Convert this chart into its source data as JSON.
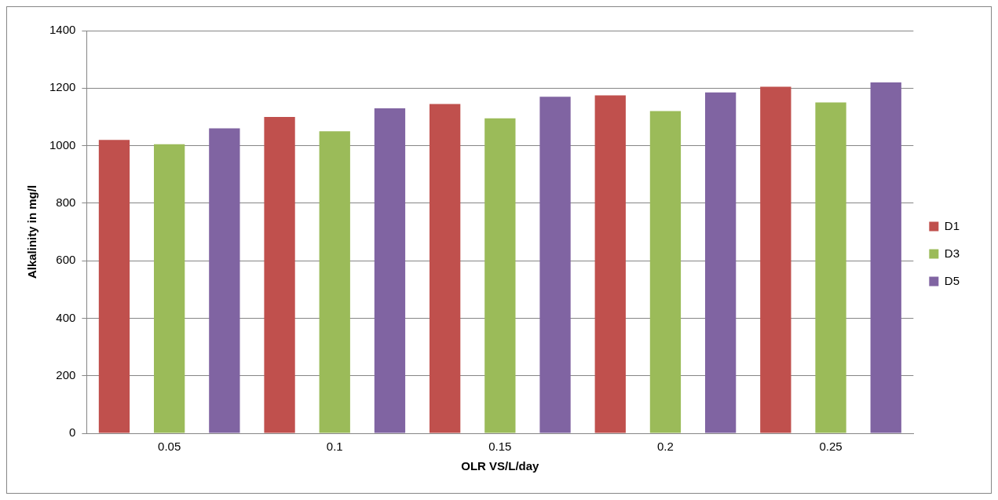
{
  "chart_data": {
    "type": "bar",
    "xlabel": "OLR VS/L/day",
    "ylabel": "Alkalinity in mg/l",
    "categories": [
      "0.05",
      "0.1",
      "0.15",
      "0.2",
      "0.25"
    ],
    "series": [
      {
        "name": "D1",
        "color": "#c0504d",
        "values": [
          1020,
          1100,
          1145,
          1175,
          1205
        ]
      },
      {
        "name": "D3",
        "color": "#9bbb59",
        "values": [
          1005,
          1050,
          1095,
          1120,
          1150
        ]
      },
      {
        "name": "D5",
        "color": "#8064a2",
        "values": [
          1060,
          1130,
          1170,
          1185,
          1220
        ]
      }
    ],
    "ylim": [
      0,
      1400
    ],
    "yticks": [
      0,
      200,
      400,
      600,
      800,
      1000,
      1200,
      1400
    ],
    "grid": "y",
    "legend": "right"
  }
}
